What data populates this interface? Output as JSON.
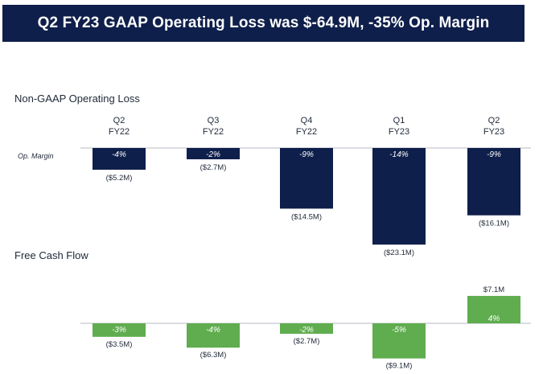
{
  "header": {
    "title": "Q2 FY23 GAAP Operating Loss was $-64.9M, -35% Op. Margin"
  },
  "colors": {
    "banner": "#0f1f4b",
    "operating_loss_bar": "#0f1f4b",
    "fcf_bar": "#5fad4e",
    "baseline": "#9ca3af"
  },
  "chart_data": [
    {
      "type": "bar",
      "title": "Non-GAAP Operating Loss",
      "row_label": "Op. Margin",
      "categories": [
        {
          "line1": "Q2",
          "line2": "FY22"
        },
        {
          "line1": "Q3",
          "line2": "FY22"
        },
        {
          "line1": "Q4",
          "line2": "FY22"
        },
        {
          "line1": "Q1",
          "line2": "FY23"
        },
        {
          "line1": "Q2",
          "line2": "FY23"
        }
      ],
      "values": [
        -5.2,
        -2.7,
        -14.5,
        -23.1,
        -16.1
      ],
      "value_labels": [
        "($5.2M)",
        "($2.7M)",
        "($14.5M)",
        "($23.1M)",
        "($16.1M)"
      ],
      "margin_labels": [
        "-4%",
        "-2%",
        "-9%",
        "-14%",
        "-9%"
      ],
      "unit": "$M"
    },
    {
      "type": "bar",
      "title": "Free Cash Flow",
      "categories": [
        {
          "line1": "Q2",
          "line2": "FY22"
        },
        {
          "line1": "Q3",
          "line2": "FY22"
        },
        {
          "line1": "Q4",
          "line2": "FY22"
        },
        {
          "line1": "Q1",
          "line2": "FY23"
        },
        {
          "line1": "Q2",
          "line2": "FY23"
        }
      ],
      "values": [
        -3.5,
        -6.3,
        -2.7,
        -9.1,
        7.1
      ],
      "value_labels": [
        "($3.5M)",
        "($6.3M)",
        "($2.7M)",
        "($9.1M)",
        "$7.1M"
      ],
      "margin_labels": [
        "-3%",
        "-4%",
        "-2%",
        "-5%",
        "4%"
      ],
      "unit": "$M"
    }
  ]
}
